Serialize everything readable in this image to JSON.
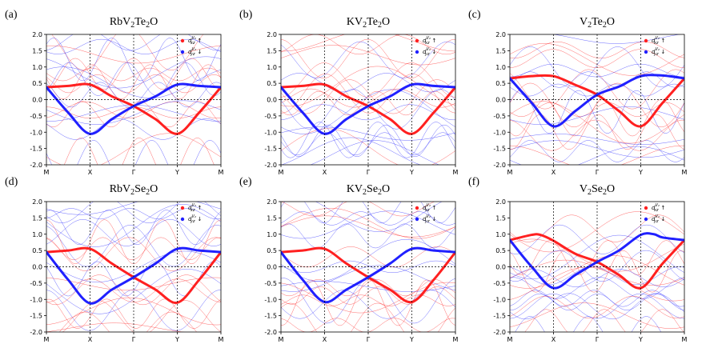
{
  "figure": "band structures",
  "colors": {
    "spin_up": "#ff2020",
    "spin_down": "#2020ff",
    "background": "#4a6cff"
  },
  "chart_data": [
    {
      "type": "line",
      "tag": "(a)",
      "title": "RbV",
      "sub1": "2",
      "mid": "Te",
      "sub2": "2",
      "tail": "O",
      "x": [
        "M",
        "X",
        "Γ",
        "Y",
        "M"
      ],
      "ylim": [
        -2.0,
        2.0
      ],
      "yticks": [
        "2.0",
        "1.5",
        "1.0",
        "0.5",
        "0.0",
        "-0.5",
        "-1.0",
        "-1.5",
        "-2.0"
      ],
      "legend": [
        {
          "label": "d_xz^Vb ↑",
          "sym": "d",
          "sup": "V₂",
          "sub": "xz",
          "arrow": "↑"
        },
        {
          "label": "d_yz^Vb ↓",
          "sym": "d",
          "sup": "V₂",
          "sub": "yz",
          "arrow": "↓"
        }
      ],
      "series": [
        {
          "name": "d_xz up",
          "points": [
            [
              0,
              0.38
            ],
            [
              0.5,
              0.42
            ],
            [
              1,
              0.46
            ],
            [
              1.5,
              0.1
            ],
            [
              2,
              -0.2
            ],
            [
              2.5,
              -0.6
            ],
            [
              3,
              -1.05
            ],
            [
              3.5,
              -0.4
            ],
            [
              4,
              0.38
            ]
          ]
        },
        {
          "name": "d_yz down",
          "points": [
            [
              0,
              0.38
            ],
            [
              0.5,
              -0.4
            ],
            [
              1,
              -1.05
            ],
            [
              1.5,
              -0.6
            ],
            [
              2,
              -0.2
            ],
            [
              2.5,
              0.1
            ],
            [
              3,
              0.46
            ],
            [
              3.5,
              0.42
            ],
            [
              4,
              0.38
            ]
          ]
        }
      ]
    },
    {
      "type": "line",
      "tag": "(b)",
      "title": "KV",
      "sub1": "2",
      "mid": "Te",
      "sub2": "2",
      "tail": "O",
      "x": [
        "M",
        "X",
        "Γ",
        "Y",
        "M"
      ],
      "ylim": [
        -2.0,
        2.0
      ],
      "yticks": [
        "2.0",
        "1.5",
        "1.0",
        "0.5",
        "0.0",
        "-0.5",
        "-1.0",
        "-1.5",
        "-2.0"
      ],
      "legend": [
        {
          "label": "d_xz^Vb ↑",
          "sym": "d",
          "sup": "V₂",
          "sub": "xz",
          "arrow": "↑"
        },
        {
          "label": "d_yz^Vb ↓",
          "sym": "d",
          "sup": "V₂",
          "sub": "yz",
          "arrow": "↓"
        }
      ],
      "series": [
        {
          "name": "d_xz up",
          "points": [
            [
              0,
              0.38
            ],
            [
              0.5,
              0.42
            ],
            [
              1,
              0.46
            ],
            [
              1.5,
              0.1
            ],
            [
              2,
              -0.2
            ],
            [
              2.5,
              -0.6
            ],
            [
              3,
              -1.05
            ],
            [
              3.5,
              -0.4
            ],
            [
              4,
              0.38
            ]
          ]
        },
        {
          "name": "d_yz down",
          "points": [
            [
              0,
              0.38
            ],
            [
              0.5,
              -0.4
            ],
            [
              1,
              -1.05
            ],
            [
              1.5,
              -0.6
            ],
            [
              2,
              -0.2
            ],
            [
              2.5,
              0.1
            ],
            [
              3,
              0.46
            ],
            [
              3.5,
              0.42
            ],
            [
              4,
              0.38
            ]
          ]
        }
      ]
    },
    {
      "type": "line",
      "tag": "(c)",
      "title": "V",
      "sub1": "2",
      "mid": "Te",
      "sub2": "2",
      "tail": "O",
      "x": [
        "M",
        "X",
        "Γ",
        "Y",
        "M"
      ],
      "ylim": [
        -2.0,
        2.0
      ],
      "yticks": [
        "2.0",
        "1.5",
        "1.0",
        "0.5",
        "0.0",
        "-0.5",
        "-1.0",
        "-1.5",
        "-2.0"
      ],
      "legend": [
        {
          "label": "d_xz^Vb ↑",
          "sym": "d",
          "sup": "V₂",
          "sub": "xz",
          "arrow": "↑"
        },
        {
          "label": "d_yz^Vb ↓",
          "sym": "d",
          "sup": "V₂",
          "sub": "yz",
          "arrow": "↓"
        }
      ],
      "series": [
        {
          "name": "d_xz up",
          "points": [
            [
              0,
              0.65
            ],
            [
              0.5,
              0.72
            ],
            [
              1,
              0.72
            ],
            [
              1.5,
              0.45
            ],
            [
              2,
              0.15
            ],
            [
              2.5,
              -0.35
            ],
            [
              3,
              -0.82
            ],
            [
              3.5,
              -0.1
            ],
            [
              4,
              0.65
            ]
          ]
        },
        {
          "name": "d_yz down",
          "points": [
            [
              0,
              0.65
            ],
            [
              0.5,
              -0.1
            ],
            [
              1,
              -0.82
            ],
            [
              1.5,
              -0.35
            ],
            [
              2,
              0.15
            ],
            [
              2.5,
              0.4
            ],
            [
              3,
              0.72
            ],
            [
              3.5,
              0.74
            ],
            [
              4,
              0.65
            ]
          ]
        }
      ]
    },
    {
      "type": "line",
      "tag": "(d)",
      "title": "RbV",
      "sub1": "2",
      "mid": "Se",
      "sub2": "2",
      "tail": "O",
      "x": [
        "M",
        "X",
        "Γ",
        "Y",
        "M"
      ],
      "ylim": [
        -2.0,
        2.0
      ],
      "yticks": [
        "2.0",
        "1.5",
        "1.0",
        "0.5",
        "0.0",
        "-0.5",
        "-1.0",
        "-1.5",
        "-2.0"
      ],
      "legend": [
        {
          "label": "d_xz^Vb ↑",
          "sym": "d",
          "sup": "V₂",
          "sub": "xz",
          "arrow": "↑"
        },
        {
          "label": "d_yz^Vb ↓",
          "sym": "d",
          "sup": "V₂",
          "sub": "yz",
          "arrow": "↓"
        }
      ],
      "series": [
        {
          "name": "d_xz up",
          "points": [
            [
              0,
              0.45
            ],
            [
              0.5,
              0.5
            ],
            [
              1,
              0.55
            ],
            [
              1.5,
              0.1
            ],
            [
              2,
              -0.32
            ],
            [
              2.5,
              -0.7
            ],
            [
              3,
              -1.1
            ],
            [
              3.5,
              -0.4
            ],
            [
              4,
              0.45
            ]
          ]
        },
        {
          "name": "d_yz down",
          "points": [
            [
              0,
              0.45
            ],
            [
              0.5,
              -0.4
            ],
            [
              1,
              -1.12
            ],
            [
              1.5,
              -0.7
            ],
            [
              2,
              -0.32
            ],
            [
              2.5,
              0.1
            ],
            [
              3,
              0.55
            ],
            [
              3.5,
              0.5
            ],
            [
              4,
              0.45
            ]
          ]
        }
      ]
    },
    {
      "type": "line",
      "tag": "(e)",
      "title": "KV",
      "sub1": "2",
      "mid": "Se",
      "sub2": "2",
      "tail": "O",
      "x": [
        "M",
        "X",
        "Γ",
        "Y",
        "M"
      ],
      "ylim": [
        -2.0,
        2.0
      ],
      "yticks": [
        "2.0",
        "1.5",
        "1.0",
        "0.5",
        "0.0",
        "-0.5",
        "-1.0",
        "-1.5",
        "-2.0"
      ],
      "legend": [
        {
          "label": "d_xz^Vb ↑",
          "sym": "d",
          "sup": "V₂",
          "sub": "xz",
          "arrow": "↑"
        },
        {
          "label": "d_yz^Vb ↓",
          "sym": "d",
          "sup": "V₂",
          "sub": "yz",
          "arrow": "↓"
        }
      ],
      "series": [
        {
          "name": "d_xz up",
          "points": [
            [
              0,
              0.45
            ],
            [
              0.5,
              0.5
            ],
            [
              1,
              0.55
            ],
            [
              1.5,
              0.1
            ],
            [
              2,
              -0.32
            ],
            [
              2.5,
              -0.7
            ],
            [
              3,
              -1.08
            ],
            [
              3.5,
              -0.4
            ],
            [
              4,
              0.45
            ]
          ]
        },
        {
          "name": "d_yz down",
          "points": [
            [
              0,
              0.45
            ],
            [
              0.5,
              -0.4
            ],
            [
              1,
              -1.08
            ],
            [
              1.5,
              -0.7
            ],
            [
              2,
              -0.32
            ],
            [
              2.5,
              0.1
            ],
            [
              3,
              0.55
            ],
            [
              3.5,
              0.5
            ],
            [
              4,
              0.45
            ]
          ]
        }
      ]
    },
    {
      "type": "line",
      "tag": "(f)",
      "title": "V",
      "sub1": "2",
      "mid": "Se",
      "sub2": "2",
      "tail": "O",
      "x": [
        "M",
        "X",
        "Γ",
        "Y",
        "M"
      ],
      "ylim": [
        -2.0,
        2.0
      ],
      "yticks": [
        "2.0",
        "1.5",
        "1.0",
        "0.5",
        "0.0",
        "-0.5",
        "-1.0",
        "-1.5",
        "-2.0"
      ],
      "legend": [
        {
          "label": "d_xz^Vb ↑",
          "sym": "d",
          "sup": "V₂",
          "sub": "xz",
          "arrow": "↑"
        },
        {
          "label": "d_yz^Vb ↓",
          "sym": "d",
          "sup": "V₂",
          "sub": "yz",
          "arrow": "↓"
        }
      ],
      "series": [
        {
          "name": "d_xz up",
          "points": [
            [
              0,
              0.82
            ],
            [
              0.5,
              0.98
            ],
            [
              0.7,
              0.98
            ],
            [
              1,
              0.8
            ],
            [
              1.5,
              0.4
            ],
            [
              2,
              0.15
            ],
            [
              2.5,
              -0.25
            ],
            [
              3,
              -0.65
            ],
            [
              3.5,
              0.1
            ],
            [
              4,
              0.82
            ]
          ]
        },
        {
          "name": "d_yz down",
          "points": [
            [
              0,
              0.82
            ],
            [
              0.5,
              0.0
            ],
            [
              1,
              -0.65
            ],
            [
              1.5,
              -0.25
            ],
            [
              2,
              0.15
            ],
            [
              2.5,
              0.5
            ],
            [
              3,
              0.98
            ],
            [
              3.3,
              1.0
            ],
            [
              3.5,
              0.9
            ],
            [
              4,
              0.82
            ]
          ]
        }
      ]
    }
  ]
}
